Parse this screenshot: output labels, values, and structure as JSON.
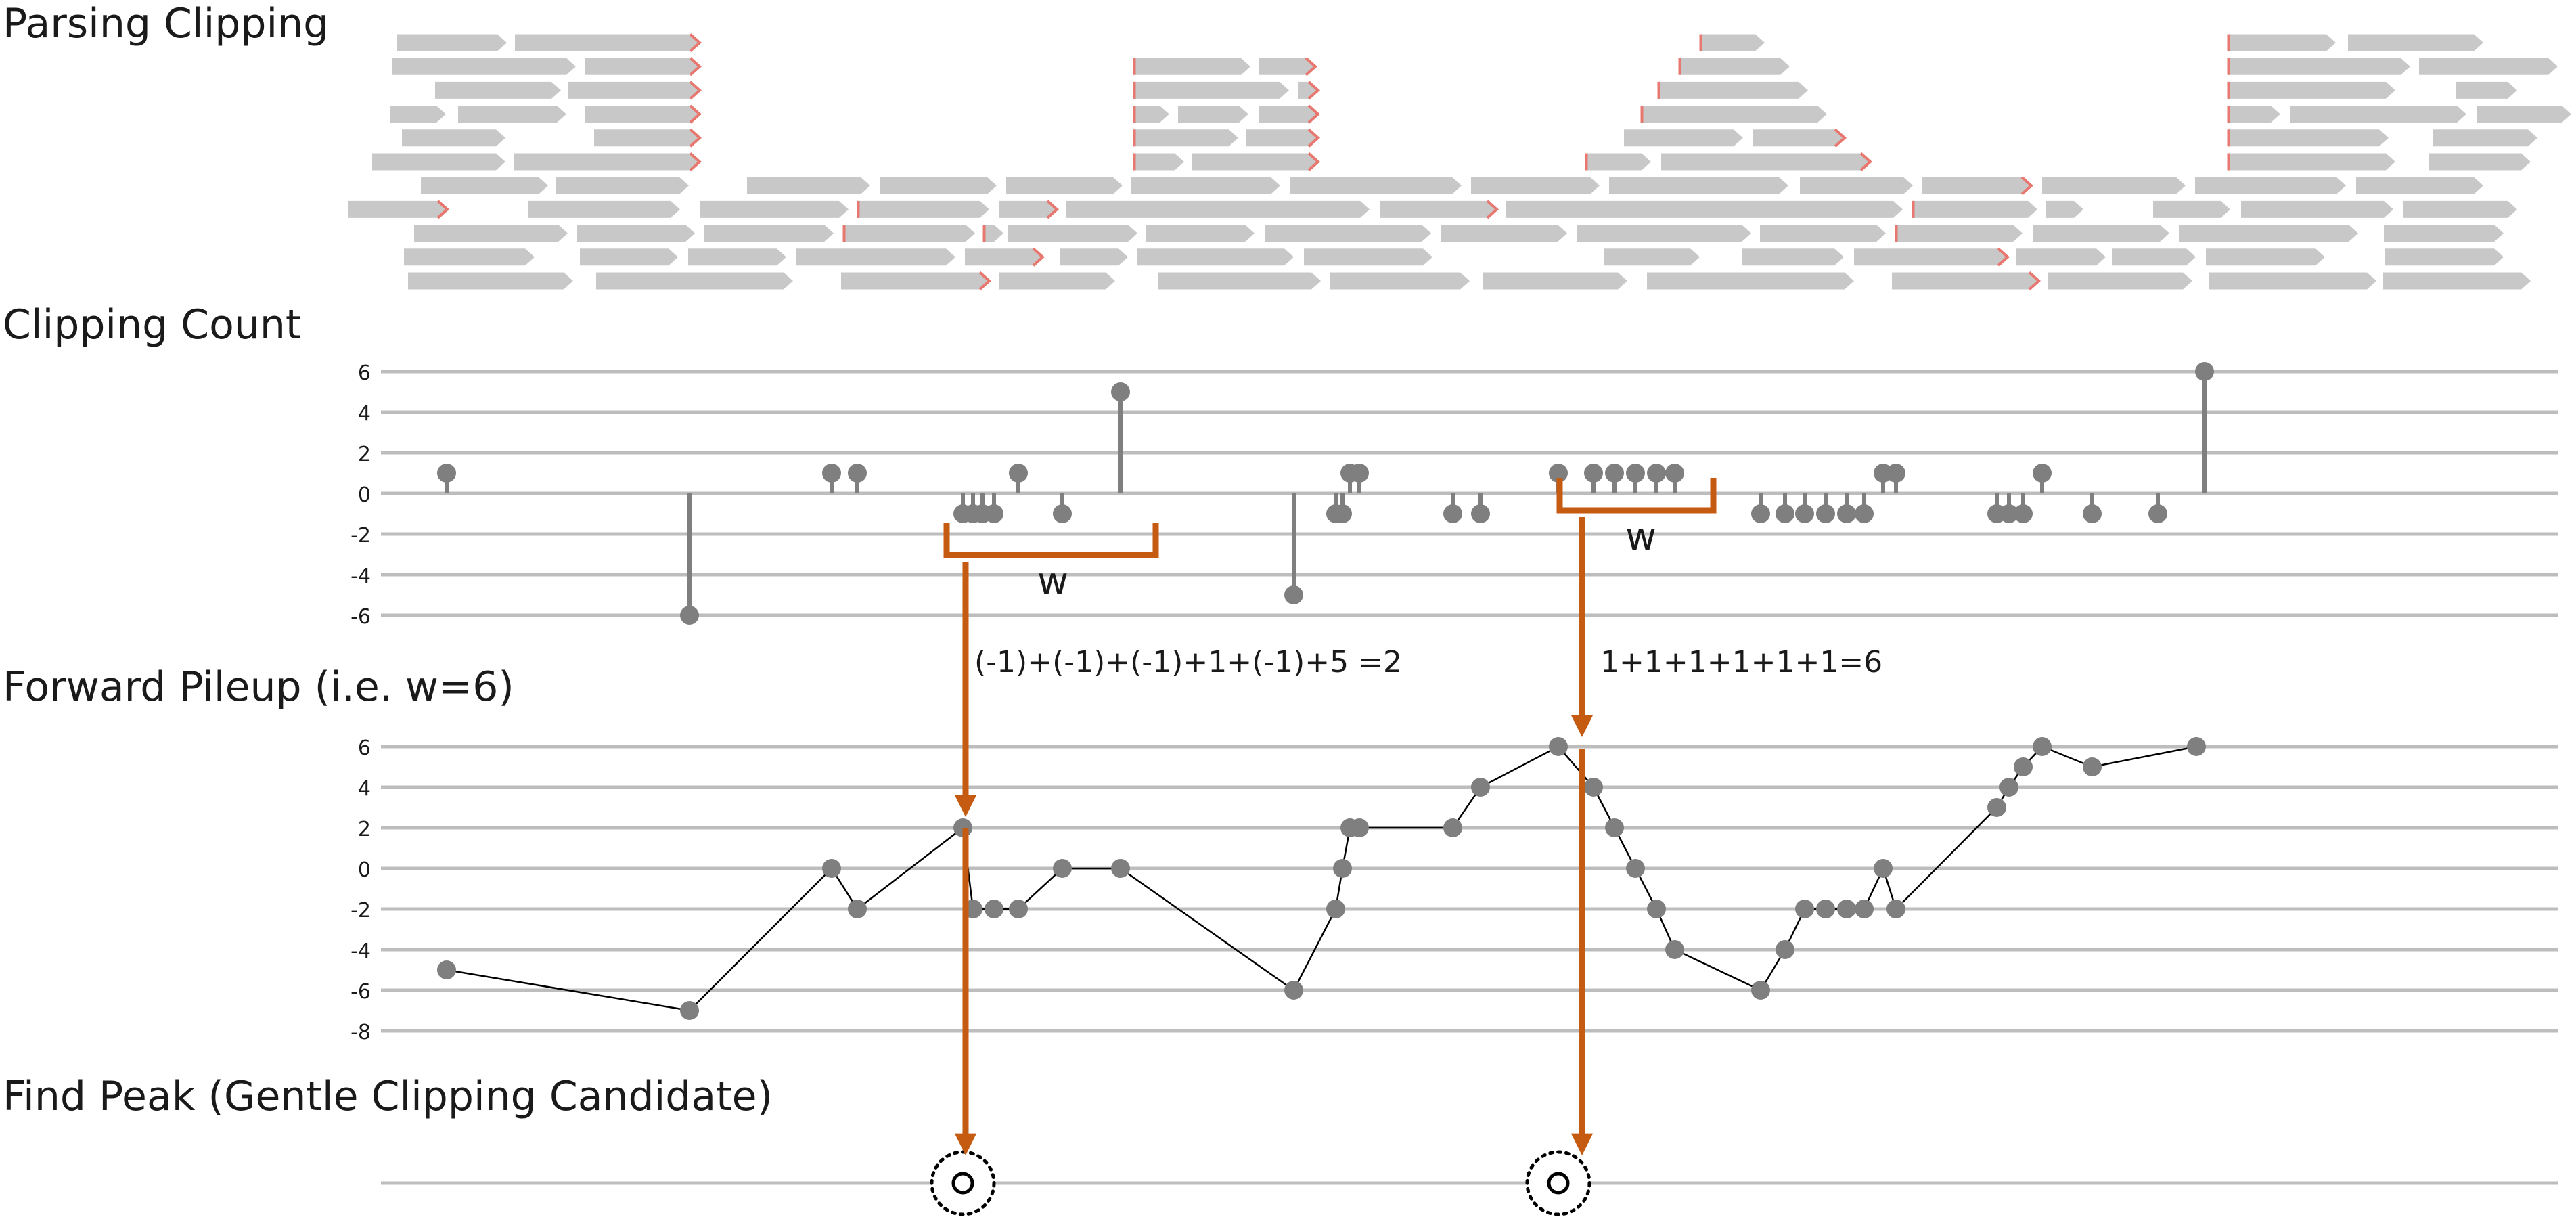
{
  "sections": {
    "parsing": "Parsing Clipping",
    "count": "Clipping Count",
    "pileup": "Forward Pileup (i.e. w=6)",
    "peak": "Find Peak (Gentle Clipping Candidate)"
  },
  "colors": {
    "read": "#c8c8c8",
    "clip_mark": "#e8776f",
    "point": "#7f7f7f",
    "grid": "#bdbdbd",
    "arrow": "#c55a11",
    "text": "#1a1a1a"
  },
  "annotations": {
    "window_label": "w",
    "formula_1": "(-1)+(-1)+(-1)+1+(-1)+5 =2",
    "formula_2": "1+1+1+1+1+1=6"
  },
  "chart_data": [
    {
      "type": "scatter",
      "style": "lollipop",
      "title": "Clipping Count",
      "yticks": [
        6,
        4,
        2,
        0,
        -2,
        -4,
        -6
      ],
      "ylim": [
        -6,
        6
      ],
      "grid": true,
      "points": [
        {
          "x": 0.0,
          "y": 1
        },
        {
          "x": 3.59,
          "y": -6
        },
        {
          "x": 5.69,
          "y": 1
        },
        {
          "x": 6.07,
          "y": 1
        },
        {
          "x": 7.63,
          "y": -1
        },
        {
          "x": 7.78,
          "y": -1
        },
        {
          "x": 7.92,
          "y": -1
        },
        {
          "x": 8.09,
          "y": -1
        },
        {
          "x": 8.45,
          "y": 1
        },
        {
          "x": 9.1,
          "y": -1
        },
        {
          "x": 9.96,
          "y": 5
        },
        {
          "x": 12.52,
          "y": -5
        },
        {
          "x": 13.14,
          "y": -1
        },
        {
          "x": 13.24,
          "y": -1
        },
        {
          "x": 13.35,
          "y": 1
        },
        {
          "x": 13.49,
          "y": 1
        },
        {
          "x": 14.87,
          "y": -1
        },
        {
          "x": 15.28,
          "y": -1
        },
        {
          "x": 16.43,
          "y": 1
        },
        {
          "x": 16.95,
          "y": 1
        },
        {
          "x": 17.26,
          "y": 1
        },
        {
          "x": 17.57,
          "y": 1
        },
        {
          "x": 17.88,
          "y": 1
        },
        {
          "x": 18.15,
          "y": 1
        },
        {
          "x": 19.42,
          "y": -1
        },
        {
          "x": 19.78,
          "y": -1
        },
        {
          "x": 20.07,
          "y": -1
        },
        {
          "x": 20.38,
          "y": -1
        },
        {
          "x": 20.69,
          "y": -1
        },
        {
          "x": 20.95,
          "y": -1
        },
        {
          "x": 21.23,
          "y": 1
        },
        {
          "x": 21.42,
          "y": 1
        },
        {
          "x": 22.91,
          "y": -1
        },
        {
          "x": 23.09,
          "y": -1
        },
        {
          "x": 23.3,
          "y": -1
        },
        {
          "x": 23.58,
          "y": 1
        },
        {
          "x": 24.32,
          "y": -1
        },
        {
          "x": 25.29,
          "y": -1
        },
        {
          "x": 25.98,
          "y": 6
        }
      ]
    },
    {
      "type": "line",
      "title": "Forward Pileup (i.e. w=6)",
      "yticks": [
        6,
        4,
        2,
        0,
        -2,
        -4,
        -6,
        -8
      ],
      "ylim": [
        -8,
        6
      ],
      "grid": true,
      "markers": true,
      "points": [
        {
          "x": 0.0,
          "y": -5
        },
        {
          "x": 3.59,
          "y": -7
        },
        {
          "x": 5.69,
          "y": 0
        },
        {
          "x": 6.07,
          "y": -2
        },
        {
          "x": 7.63,
          "y": 2
        },
        {
          "x": 7.78,
          "y": -2
        },
        {
          "x": 8.09,
          "y": -2
        },
        {
          "x": 8.45,
          "y": -2
        },
        {
          "x": 9.1,
          "y": 0
        },
        {
          "x": 9.96,
          "y": 0
        },
        {
          "x": 12.52,
          "y": -6
        },
        {
          "x": 13.14,
          "y": -2
        },
        {
          "x": 13.24,
          "y": 0
        },
        {
          "x": 13.35,
          "y": 2
        },
        {
          "x": 13.49,
          "y": 2
        },
        {
          "x": 14.87,
          "y": 2
        },
        {
          "x": 15.28,
          "y": 4
        },
        {
          "x": 16.43,
          "y": 6
        },
        {
          "x": 16.95,
          "y": 4
        },
        {
          "x": 17.26,
          "y": 2
        },
        {
          "x": 17.57,
          "y": 0
        },
        {
          "x": 17.88,
          "y": -2
        },
        {
          "x": 18.15,
          "y": -4
        },
        {
          "x": 19.42,
          "y": -6
        },
        {
          "x": 19.78,
          "y": -4
        },
        {
          "x": 20.07,
          "y": -2
        },
        {
          "x": 20.38,
          "y": -2
        },
        {
          "x": 20.69,
          "y": -2
        },
        {
          "x": 20.95,
          "y": -2
        },
        {
          "x": 21.23,
          "y": 0
        },
        {
          "x": 21.42,
          "y": -2
        },
        {
          "x": 22.91,
          "y": 3
        },
        {
          "x": 23.09,
          "y": 4
        },
        {
          "x": 23.3,
          "y": 5
        },
        {
          "x": 23.58,
          "y": 6
        },
        {
          "x": 24.32,
          "y": 5
        },
        {
          "x": 25.86,
          "y": 6
        }
      ]
    },
    {
      "type": "scatter",
      "title": "Find Peak (Gentle Clipping Candidate)",
      "peaks": [
        {
          "x": 7.63
        },
        {
          "x": 16.43
        }
      ]
    }
  ],
  "reads": [
    [
      {
        "s": 587,
        "e": 749,
        "c": null
      },
      {
        "s": 761,
        "e": 1034,
        "c": "end"
      },
      {
        "s": 2512,
        "e": 2608,
        "c": "start"
      },
      {
        "s": 3292,
        "e": 3452,
        "c": "start"
      },
      {
        "s": 3470,
        "e": 3670,
        "c": null
      }
    ],
    [
      {
        "s": 580,
        "e": 851,
        "c": null
      },
      {
        "s": 865,
        "e": 1034,
        "c": "end"
      },
      {
        "s": 1675,
        "e": 1848,
        "c": "start"
      },
      {
        "s": 1860,
        "e": 1944,
        "c": "end"
      },
      {
        "s": 2481,
        "e": 2645,
        "c": "start"
      },
      {
        "s": 3292,
        "e": 3562,
        "c": "start"
      },
      {
        "s": 3575,
        "e": 3780,
        "c": null
      }
    ],
    [
      {
        "s": 643,
        "e": 829,
        "c": null
      },
      {
        "s": 840,
        "e": 1034,
        "c": "end"
      },
      {
        "s": 1675,
        "e": 1905,
        "c": "start"
      },
      {
        "s": 1918,
        "e": 1948,
        "c": "end"
      },
      {
        "s": 2450,
        "e": 2672,
        "c": "start"
      },
      {
        "s": 3292,
        "e": 3540,
        "c": "start"
      },
      {
        "s": 3630,
        "e": 3720,
        "c": null
      }
    ],
    [
      {
        "s": 577,
        "e": 659,
        "c": null
      },
      {
        "s": 677,
        "e": 837,
        "c": null
      },
      {
        "s": 865,
        "e": 1034,
        "c": "end"
      },
      {
        "s": 1675,
        "e": 1728,
        "c": "start"
      },
      {
        "s": 1741,
        "e": 1845,
        "c": null
      },
      {
        "s": 1860,
        "e": 1948,
        "c": "end"
      },
      {
        "s": 2425,
        "e": 2700,
        "c": "start"
      },
      {
        "s": 3292,
        "e": 3370,
        "c": "start"
      },
      {
        "s": 3385,
        "e": 3645,
        "c": null
      },
      {
        "s": 3660,
        "e": 3800,
        "c": null
      }
    ],
    [
      {
        "s": 594,
        "e": 747,
        "c": null
      },
      {
        "s": 878,
        "e": 1034,
        "c": "end"
      },
      {
        "s": 1675,
        "e": 1830,
        "c": "start"
      },
      {
        "s": 1842,
        "e": 1948,
        "c": "end"
      },
      {
        "s": 2400,
        "e": 2576,
        "c": null
      },
      {
        "s": 2590,
        "e": 2726,
        "c": "end"
      },
      {
        "s": 3292,
        "e": 3530,
        "c": "start"
      },
      {
        "s": 3596,
        "e": 3750,
        "c": null
      }
    ],
    [
      {
        "s": 550,
        "e": 747,
        "c": null
      },
      {
        "s": 760,
        "e": 1034,
        "c": "end"
      },
      {
        "s": 1675,
        "e": 1750,
        "c": "start"
      },
      {
        "s": 1762,
        "e": 1948,
        "c": "end"
      },
      {
        "s": 2343,
        "e": 2440,
        "c": "start"
      },
      {
        "s": 2455,
        "e": 2764,
        "c": "end"
      },
      {
        "s": 3292,
        "e": 3540,
        "c": "start"
      },
      {
        "s": 3590,
        "e": 3740,
        "c": null
      }
    ],
    [
      {
        "s": 622,
        "e": 810,
        "c": null
      },
      {
        "s": 822,
        "e": 1018,
        "c": null
      },
      {
        "s": 1104,
        "e": 1286,
        "c": null
      },
      {
        "s": 1301,
        "e": 1473,
        "c": null
      },
      {
        "s": 1487,
        "e": 1659,
        "c": null
      },
      {
        "s": 1672,
        "e": 1892,
        "c": null
      },
      {
        "s": 1906,
        "e": 2160,
        "c": null
      },
      {
        "s": 2174,
        "e": 2364,
        "c": null
      },
      {
        "s": 2378,
        "e": 2643,
        "c": null
      },
      {
        "s": 2660,
        "e": 2827,
        "c": null
      },
      {
        "s": 2840,
        "e": 3002,
        "c": "end"
      },
      {
        "s": 3018,
        "e": 3230,
        "c": null
      },
      {
        "s": 3244,
        "e": 3467,
        "c": null
      },
      {
        "s": 3482,
        "e": 3670,
        "c": null
      }
    ],
    [
      {
        "s": 515,
        "e": 661,
        "c": "end"
      },
      {
        "s": 780,
        "e": 1005,
        "c": null
      },
      {
        "s": 1034,
        "e": 1254,
        "c": null
      },
      {
        "s": 1267,
        "e": 1462,
        "c": "start"
      },
      {
        "s": 1476,
        "e": 1562,
        "c": "end"
      },
      {
        "s": 1576,
        "e": 2024,
        "c": null
      },
      {
        "s": 2040,
        "e": 2212,
        "c": "end"
      },
      {
        "s": 2225,
        "e": 2812,
        "c": null
      },
      {
        "s": 2826,
        "e": 3011,
        "c": "start"
      },
      {
        "s": 3024,
        "e": 3079,
        "c": null
      },
      {
        "s": 3182,
        "e": 3296,
        "c": null
      },
      {
        "s": 3312,
        "e": 3537,
        "c": null
      },
      {
        "s": 3552,
        "e": 3720,
        "c": null
      }
    ],
    [
      {
        "s": 612,
        "e": 839,
        "c": null
      },
      {
        "s": 852,
        "e": 1027,
        "c": null
      },
      {
        "s": 1041,
        "e": 1232,
        "c": null
      },
      {
        "s": 1246,
        "e": 1441,
        "c": "start"
      },
      {
        "s": 1453,
        "e": 1483,
        "c": "start"
      },
      {
        "s": 1489,
        "e": 1681,
        "c": null
      },
      {
        "s": 1693,
        "e": 1854,
        "c": null
      },
      {
        "s": 1869,
        "e": 2115,
        "c": null
      },
      {
        "s": 2129,
        "e": 2316,
        "c": null
      },
      {
        "s": 2330,
        "e": 2588,
        "c": null
      },
      {
        "s": 2601,
        "e": 2787,
        "c": null
      },
      {
        "s": 2801,
        "e": 2989,
        "c": "start"
      },
      {
        "s": 3004,
        "e": 3206,
        "c": null
      },
      {
        "s": 3220,
        "e": 3485,
        "c": null
      },
      {
        "s": 3523,
        "e": 3700,
        "c": null
      }
    ],
    [
      {
        "s": 597,
        "e": 790,
        "c": null
      },
      {
        "s": 857,
        "e": 1002,
        "c": null
      },
      {
        "s": 1017,
        "e": 1162,
        "c": null
      },
      {
        "s": 1177,
        "e": 1412,
        "c": null
      },
      {
        "s": 1426,
        "e": 1541,
        "c": "end"
      },
      {
        "s": 1566,
        "e": 1667,
        "c": null
      },
      {
        "s": 1681,
        "e": 1912,
        "c": null
      },
      {
        "s": 1927,
        "e": 2117,
        "c": null
      },
      {
        "s": 2370,
        "e": 2512,
        "c": null
      },
      {
        "s": 2574,
        "e": 2725,
        "c": null
      },
      {
        "s": 2740,
        "e": 2967,
        "c": "end"
      },
      {
        "s": 2980,
        "e": 3112,
        "c": null
      },
      {
        "s": 3121,
        "e": 3245,
        "c": null
      },
      {
        "s": 3260,
        "e": 3436,
        "c": null
      },
      {
        "s": 3525,
        "e": 3700,
        "c": null
      }
    ],
    [
      {
        "s": 603,
        "e": 847,
        "c": null
      },
      {
        "s": 881,
        "e": 1172,
        "c": null
      },
      {
        "s": 1243,
        "e": 1462,
        "c": "end"
      },
      {
        "s": 1477,
        "e": 1648,
        "c": null
      },
      {
        "s": 1712,
        "e": 1952,
        "c": null
      },
      {
        "s": 1966,
        "e": 2172,
        "c": null
      },
      {
        "s": 2191,
        "e": 2405,
        "c": null
      },
      {
        "s": 2434,
        "e": 2740,
        "c": null
      },
      {
        "s": 2796,
        "e": 3013,
        "c": "end"
      },
      {
        "s": 3026,
        "e": 3240,
        "c": null
      },
      {
        "s": 3265,
        "e": 3512,
        "c": null
      },
      {
        "s": 3522,
        "e": 3740,
        "c": null
      }
    ]
  ]
}
